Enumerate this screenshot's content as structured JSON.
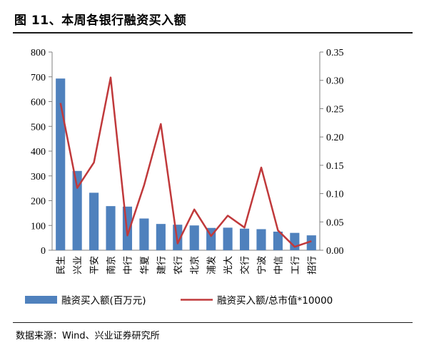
{
  "page": {
    "title": "图 11、本周各银行融资买入额",
    "source": "数据来源：Wind、兴业证券研究所"
  },
  "chart_data": {
    "type": "bar",
    "categories": [
      "民生",
      "兴业",
      "平安",
      "南京",
      "中行",
      "华夏",
      "建行",
      "农行",
      "北京",
      "浦发",
      "光大",
      "交行",
      "宁波",
      "中信",
      "工行",
      "招行"
    ],
    "series": [
      {
        "name": "融资买入额(百万元)",
        "type": "bar",
        "axis": "left",
        "color": "#4f81bd",
        "values": [
          693,
          320,
          232,
          178,
          176,
          128,
          106,
          103,
          100,
          90,
          91,
          87,
          85,
          75,
          70,
          60
        ]
      },
      {
        "name": "融资买入额/总市值*10000",
        "type": "line",
        "axis": "right",
        "color": "#c0393b",
        "values": [
          0.26,
          0.11,
          0.155,
          0.305,
          0.026,
          0.115,
          0.223,
          0.012,
          0.072,
          0.025,
          0.061,
          0.04,
          0.146,
          0.035,
          0.006,
          0.016
        ]
      }
    ],
    "ylim_left": [
      0,
      800
    ],
    "yticks_left": [
      "0",
      "100",
      "200",
      "300",
      "400",
      "500",
      "600",
      "700",
      "800"
    ],
    "ylim_right": [
      0,
      0.35
    ],
    "yticks_right": [
      "0.00",
      "0.05",
      "0.10",
      "0.15",
      "0.20",
      "0.25",
      "0.30",
      "0.35"
    ],
    "grid": false,
    "legend_position": "bottom"
  }
}
